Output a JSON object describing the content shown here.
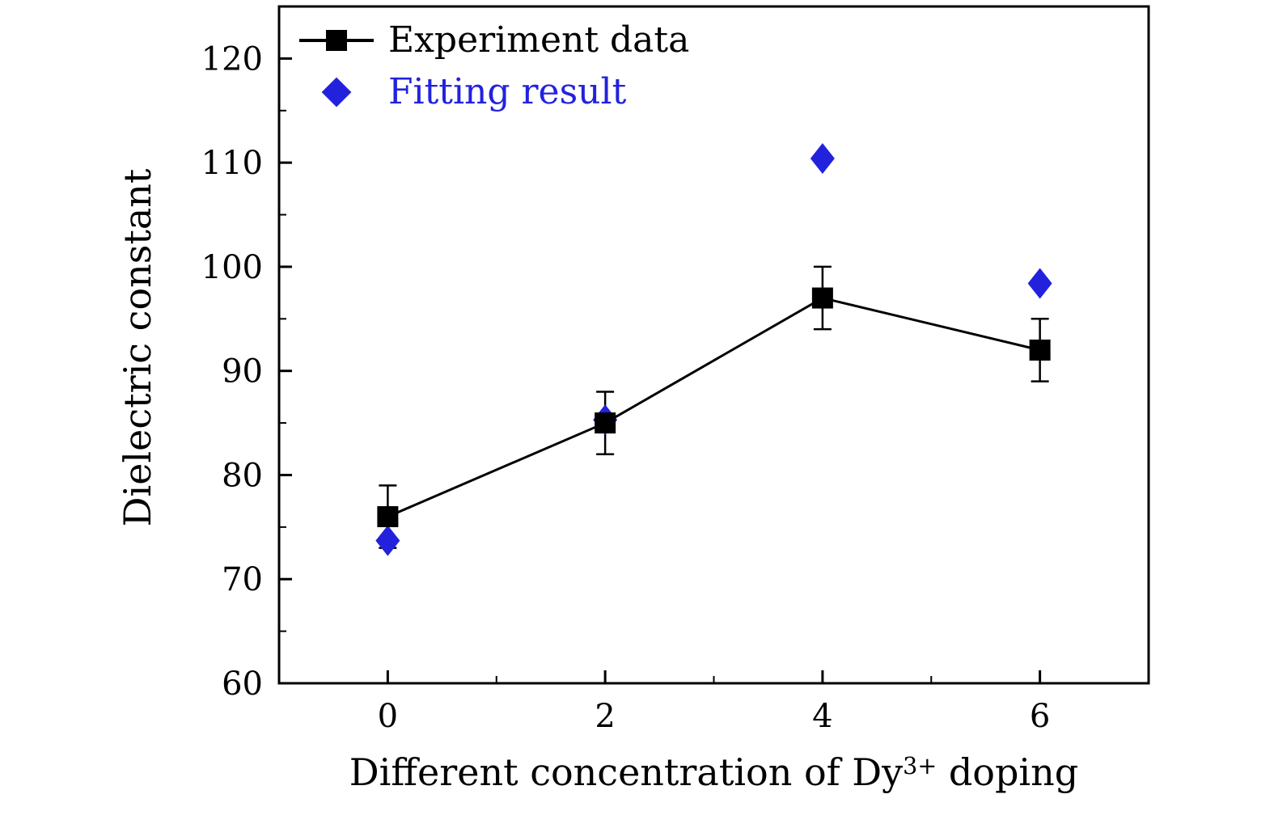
{
  "figure": {
    "background": "#ffffff",
    "frame_color": "#000000"
  },
  "chart_data": {
    "type": "scatter",
    "title": "",
    "xlabel": {
      "pre": "Different concentration of Dy",
      "sup": "3+",
      "post": " doping"
    },
    "ylabel": "Dielectric constant",
    "xlim": [
      -1,
      7
    ],
    "ylim": [
      60,
      125
    ],
    "xticks": [
      0,
      2,
      4,
      6
    ],
    "yticks": [
      60,
      70,
      80,
      90,
      100,
      110,
      120
    ],
    "x_minor_ticks": [
      1,
      3,
      5
    ],
    "y_minor_ticks": [
      65,
      75,
      85,
      95,
      105,
      115
    ],
    "grid": false,
    "legend_position": "top-left",
    "series": [
      {
        "name": "Experiment data",
        "type": "line+scatter+errorbar",
        "marker": "square",
        "color": "#000000",
        "x": [
          0,
          2,
          4,
          6
        ],
        "y": [
          76,
          85,
          97,
          92
        ],
        "yerr": [
          3,
          3,
          3,
          3
        ]
      },
      {
        "name": "Fitting result",
        "type": "scatter",
        "marker": "diamond",
        "color": "#2222dd",
        "x": [
          0,
          2,
          4,
          6
        ],
        "y": [
          73.7,
          85.3,
          110.4,
          98.4
        ]
      }
    ]
  }
}
